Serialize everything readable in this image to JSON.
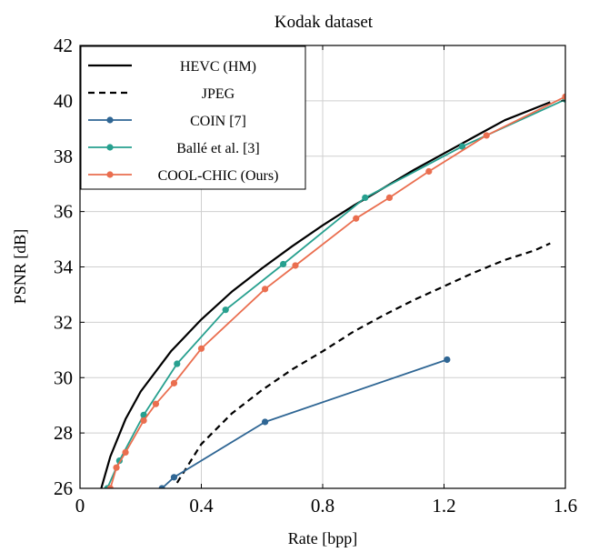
{
  "chart_data": {
    "type": "line",
    "title": "Kodak dataset",
    "xlabel": "Rate [bpp]",
    "ylabel": "PSNR [dB]",
    "xlim": [
      0,
      1.6
    ],
    "ylim": [
      26,
      42
    ],
    "xticks": [
      "0",
      "0.4",
      "0.8",
      "1.2",
      "1.6"
    ],
    "yticks": [
      "26",
      "28",
      "30",
      "32",
      "34",
      "36",
      "38",
      "40",
      "42"
    ],
    "grid": true,
    "legend_position": "top-left",
    "series": [
      {
        "name": "HEVC (HM)",
        "color": "#000000",
        "style": "solid",
        "markers": false,
        "x": [
          0.07,
          0.1,
          0.15,
          0.2,
          0.3,
          0.4,
          0.5,
          0.6,
          0.7,
          0.8,
          0.9,
          1.0,
          1.1,
          1.2,
          1.3,
          1.4,
          1.55
        ],
        "y": [
          26.0,
          27.15,
          28.5,
          29.5,
          30.95,
          32.1,
          33.1,
          33.95,
          34.75,
          35.5,
          36.2,
          36.85,
          37.5,
          38.1,
          38.7,
          39.3,
          39.95
        ]
      },
      {
        "name": "JPEG",
        "color": "#000000",
        "style": "dashed",
        "markers": false,
        "x": [
          0.32,
          0.4,
          0.5,
          0.6,
          0.7,
          0.8,
          0.9,
          1.0,
          1.1,
          1.2,
          1.3,
          1.4,
          1.5,
          1.55
        ],
        "y": [
          26.2,
          27.6,
          28.7,
          29.55,
          30.3,
          30.95,
          31.65,
          32.25,
          32.8,
          33.3,
          33.8,
          34.25,
          34.6,
          34.85
        ]
      },
      {
        "name": "COIN [7]",
        "color": "#2f6694",
        "style": "solid",
        "markers": true,
        "x": [
          0.27,
          0.31,
          0.61,
          1.21
        ],
        "y": [
          26.0,
          26.4,
          28.4,
          30.65
        ]
      },
      {
        "name": "Ballé et al. [3]",
        "color": "#27a08f",
        "style": "solid",
        "markers": true,
        "x": [
          0.09,
          0.13,
          0.21,
          0.32,
          0.48,
          0.67,
          0.94,
          1.26,
          1.6
        ],
        "y": [
          26.0,
          27.0,
          28.65,
          30.5,
          32.45,
          34.1,
          36.5,
          38.35,
          40.05
        ]
      },
      {
        "name": "COOL-CHIC (Ours)",
        "color": "#ea6e4f",
        "style": "solid",
        "markers": true,
        "x": [
          0.1,
          0.12,
          0.15,
          0.21,
          0.25,
          0.31,
          0.4,
          0.61,
          0.71,
          0.91,
          1.02,
          1.15,
          1.34,
          1.6
        ],
        "y": [
          26.0,
          26.75,
          27.3,
          28.45,
          29.05,
          29.8,
          31.05,
          33.2,
          34.05,
          35.75,
          36.5,
          37.45,
          38.75,
          40.15
        ]
      }
    ]
  }
}
